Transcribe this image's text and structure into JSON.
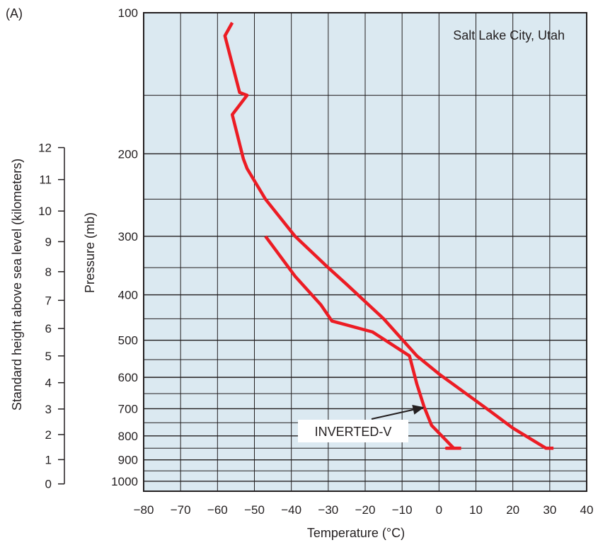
{
  "panel_label": "(A)",
  "chart_data": {
    "type": "line",
    "title": "Salt Lake City, Utah",
    "xlabel": "Temperature (°C)",
    "ylabel": "Pressure (mb)",
    "ylabel_secondary": "Standard height above sea level (kilometers)",
    "xlim": [
      -80,
      40
    ],
    "ylim": [
      1050,
      100
    ],
    "y_scale": "log",
    "x_ticks": [
      -80,
      -70,
      -60,
      -50,
      -40,
      -30,
      -20,
      -10,
      0,
      10,
      20,
      30,
      40
    ],
    "x_tick_labels": [
      "−80",
      "−70",
      "−60",
      "−50",
      "−40",
      "−30",
      "−20",
      "−10",
      "0",
      "10",
      "20",
      "30",
      "40"
    ],
    "y_ticks": [
      100,
      200,
      300,
      400,
      500,
      600,
      700,
      800,
      900,
      1000
    ],
    "y_tick_labels": [
      "100",
      "200",
      "300",
      "400",
      "500",
      "600",
      "700",
      "800",
      "900",
      "1000"
    ],
    "height_ticks_km": [
      "0",
      "1",
      "2",
      "3",
      "4",
      "5",
      "6",
      "7",
      "8",
      "9",
      "10",
      "11",
      "12"
    ],
    "height_tick_pressures": [
      1013,
      899,
      795,
      701,
      616,
      540,
      472,
      411,
      357,
      308,
      265,
      227,
      194
    ],
    "grid": true,
    "background_color": "#dbe9f1",
    "line_color": "#ec1c24",
    "series": [
      {
        "values": [
          {
            "x": 31,
            "y": 850
          },
          {
            "x": 29,
            "y": 850
          },
          {
            "x": 20,
            "y": 770
          },
          {
            "x": 14,
            "y": 710
          },
          {
            "x": 0,
            "y": 590
          },
          {
            "x": -6,
            "y": 540
          },
          {
            "x": -15,
            "y": 450
          },
          {
            "x": -25,
            "y": 380
          },
          {
            "x": -30,
            "y": 350
          },
          {
            "x": -39,
            "y": 300
          },
          {
            "x": -47,
            "y": 250
          },
          {
            "x": -52,
            "y": 215
          },
          {
            "x": -53,
            "y": 205
          },
          {
            "x": -56,
            "y": 165
          },
          {
            "x": -52,
            "y": 150
          },
          {
            "x": -54,
            "y": 148
          },
          {
            "x": -58,
            "y": 112
          },
          {
            "x": -56,
            "y": 105
          }
        ]
      },
      {
        "values": [
          {
            "x": 6,
            "y": 850
          },
          {
            "x": 2,
            "y": 850
          },
          {
            "x": 4,
            "y": 850
          },
          {
            "x": -2,
            "y": 760
          },
          {
            "x": -4,
            "y": 695
          },
          {
            "x": -6,
            "y": 620
          },
          {
            "x": -8,
            "y": 540
          },
          {
            "x": -18,
            "y": 480
          },
          {
            "x": -29,
            "y": 455
          },
          {
            "x": -32,
            "y": 420
          },
          {
            "x": -39,
            "y": 365
          },
          {
            "x": -47,
            "y": 300
          }
        ]
      }
    ],
    "annotation": {
      "text": "INVERTED-V",
      "arrow_to": {
        "x": -4,
        "y": 695
      }
    }
  }
}
